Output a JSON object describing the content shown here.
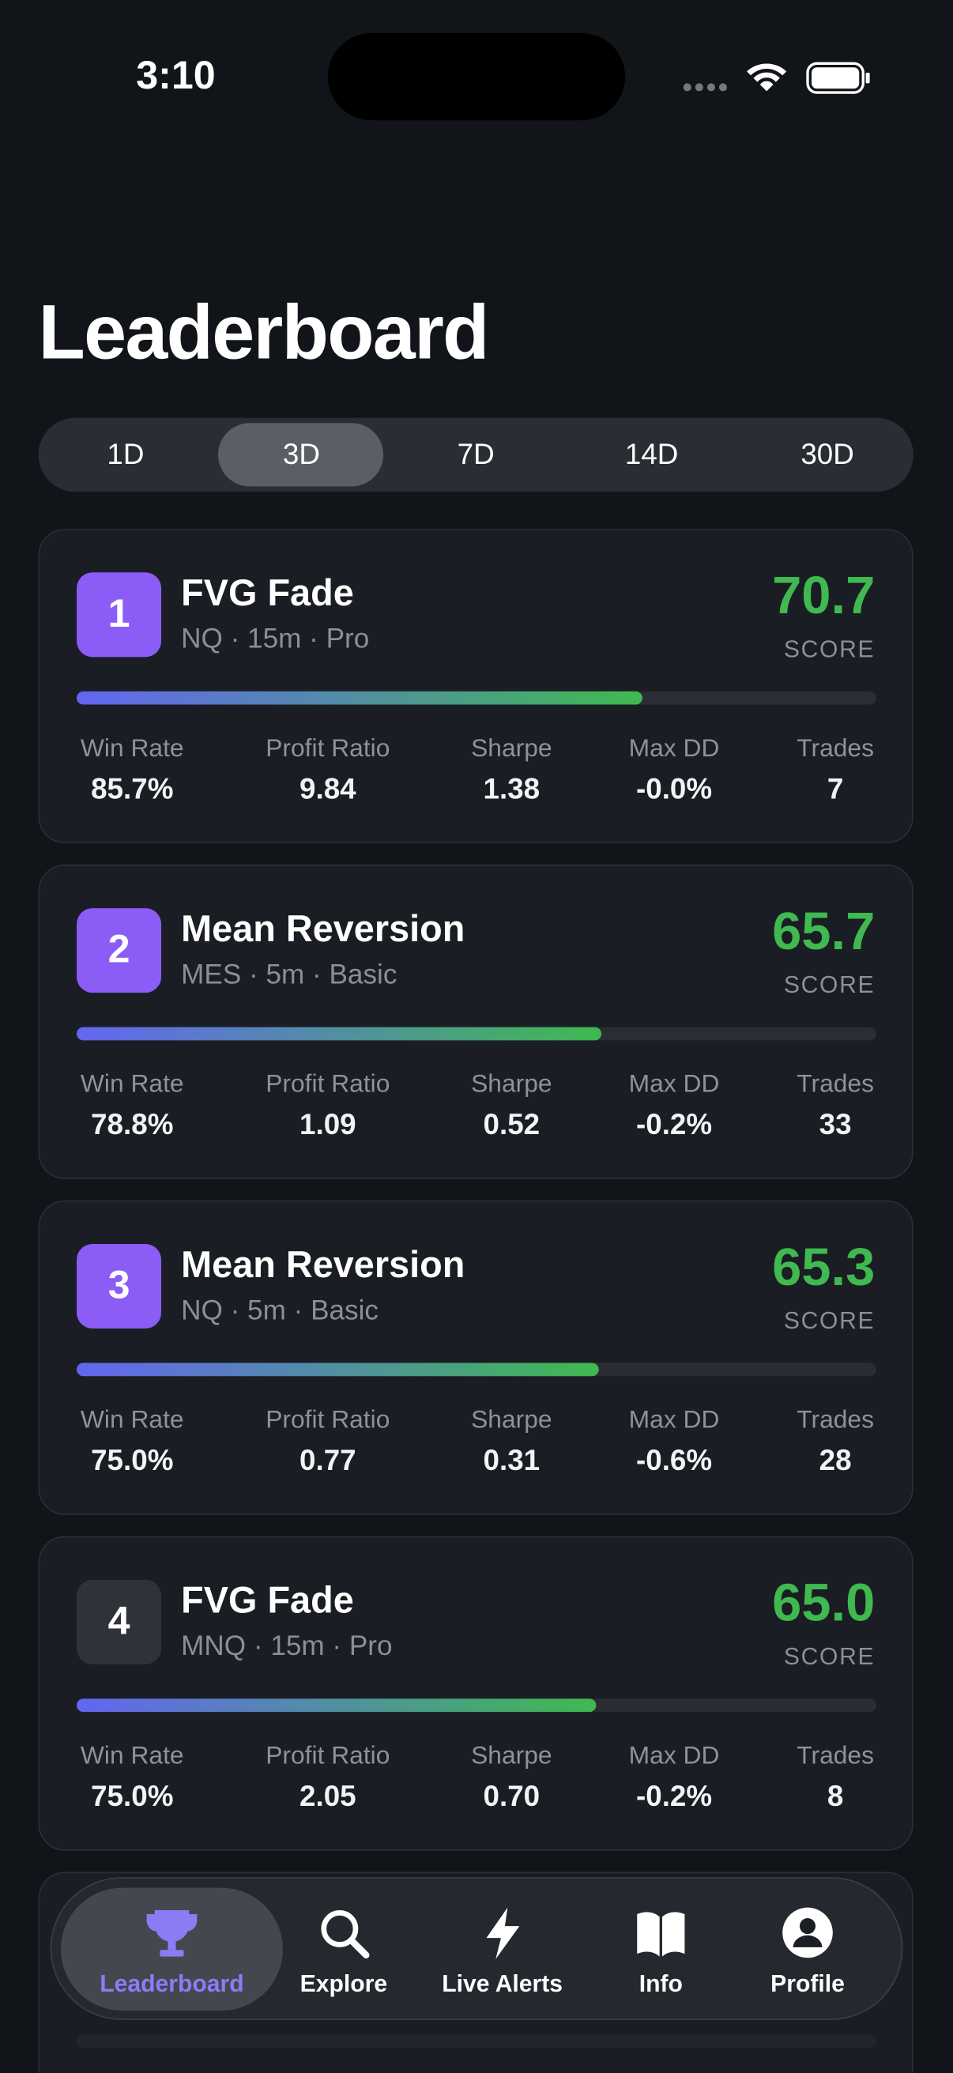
{
  "status_bar": {
    "time": "3:10"
  },
  "header": {
    "title": "Leaderboard"
  },
  "tabs": {
    "items": [
      "1D",
      "3D",
      "7D",
      "14D",
      "30D"
    ],
    "selected": "3D"
  },
  "stat_labels": [
    "Win Rate",
    "Profit Ratio",
    "Sharpe",
    "Max DD",
    "Trades"
  ],
  "score_label": "SCORE",
  "cards": [
    {
      "rank": "1",
      "badge_color": "#8b5cf6",
      "name": "FVG Fade",
      "meta": "NQ · 15m · Pro",
      "score": "70.7",
      "stats": [
        "85.7%",
        "9.84",
        "1.38",
        "-0.0%",
        "7"
      ]
    },
    {
      "rank": "2",
      "badge_color": "#8b5cf6",
      "name": "Mean Reversion",
      "meta": "MES · 5m · Basic",
      "score": "65.7",
      "stats": [
        "78.8%",
        "1.09",
        "0.52",
        "-0.2%",
        "33"
      ]
    },
    {
      "rank": "3",
      "badge_color": "#8b5cf6",
      "name": "Mean Reversion",
      "meta": "NQ · 5m · Basic",
      "score": "65.3",
      "stats": [
        "75.0%",
        "0.77",
        "0.31",
        "-0.6%",
        "28"
      ]
    },
    {
      "rank": "4",
      "badge_color": "#2f3339",
      "name": "FVG Fade",
      "meta": "MNQ · 15m · Pro",
      "score": "65.0",
      "stats": [
        "75.0%",
        "2.05",
        "0.70",
        "-0.2%",
        "8"
      ]
    }
  ],
  "nav": {
    "items": [
      "Leaderboard",
      "Explore",
      "Live Alerts",
      "Info",
      "Profile"
    ],
    "active": "Leaderboard"
  }
}
